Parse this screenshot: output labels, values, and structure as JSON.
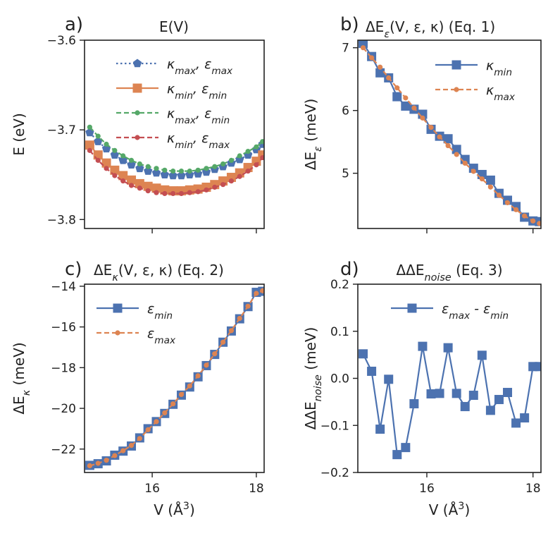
{
  "colors": {
    "blue": "#4c72b0",
    "orange": "#dd8452",
    "green": "#55a868",
    "red": "#c44e52",
    "axis": "#222222"
  },
  "panels": [
    {
      "letter": "a)",
      "title": "E(V)",
      "ylabel": "E (eV)",
      "xlabel": ""
    },
    {
      "letter": "b)",
      "title": "ΔE_ε(V, ε, κ)  (Eq. 1)",
      "ylabel": "ΔE_ε (meV)",
      "xlabel": ""
    },
    {
      "letter": "c)",
      "title": "ΔE_κ(V, ε, κ) (Eq. 2)",
      "ylabel": "ΔE_κ (meV)",
      "xlabel": "V (Å³)"
    },
    {
      "letter": "d)",
      "title": "ΔΔE_noise (Eq. 3)",
      "ylabel": "ΔΔE_noise (meV)",
      "xlabel": "V (Å³)"
    }
  ],
  "chart_data": [
    {
      "type": "line",
      "title": "E(V)",
      "xlabel": "",
      "ylabel": "E (eV)",
      "xlim": [
        14.7,
        18.15
      ],
      "ylim": [
        -3.81,
        -3.6
      ],
      "yticks": [
        -3.6,
        -3.7,
        -3.8
      ],
      "ytick_labels": [
        "−3.6",
        "−3.7",
        "−3.8"
      ],
      "xticks": [
        16,
        18
      ],
      "xtick_labels": [
        "",
        ""
      ],
      "legend_position": "top-right",
      "x": [
        14.8,
        14.96,
        15.12,
        15.28,
        15.44,
        15.6,
        15.76,
        15.92,
        16.08,
        16.24,
        16.4,
        16.56,
        16.72,
        16.88,
        17.04,
        17.2,
        17.36,
        17.52,
        17.68,
        17.84,
        18.0,
        18.12
      ],
      "series": [
        {
          "name": "κ_max, ε_max",
          "color": "#4c72b0",
          "marker": "pentagon",
          "linestyle": "dotted",
          "values": [
            -3.703,
            -3.713,
            -3.721,
            -3.728,
            -3.734,
            -3.739,
            -3.743,
            -3.746,
            -3.748,
            -3.75,
            -3.751,
            -3.751,
            -3.75,
            -3.749,
            -3.747,
            -3.744,
            -3.741,
            -3.737,
            -3.733,
            -3.728,
            -3.722,
            -3.716
          ]
        },
        {
          "name": "κ_min, ε_min",
          "color": "#dd8452",
          "marker": "square",
          "linestyle": "solid",
          "values": [
            -3.717,
            -3.728,
            -3.737,
            -3.745,
            -3.751,
            -3.756,
            -3.76,
            -3.763,
            -3.765,
            -3.767,
            -3.768,
            -3.768,
            -3.767,
            -3.766,
            -3.764,
            -3.761,
            -3.757,
            -3.753,
            -3.748,
            -3.742,
            -3.735,
            -3.728
          ]
        },
        {
          "name": "κ_max, ε_min",
          "color": "#55a868",
          "marker": "dot",
          "linestyle": "dashed",
          "values": [
            -3.697,
            -3.707,
            -3.716,
            -3.723,
            -3.729,
            -3.734,
            -3.738,
            -3.741,
            -3.743,
            -3.745,
            -3.746,
            -3.746,
            -3.746,
            -3.745,
            -3.743,
            -3.741,
            -3.738,
            -3.734,
            -3.729,
            -3.724,
            -3.719,
            -3.713
          ]
        },
        {
          "name": "κ_min, ε_max",
          "color": "#c44e52",
          "marker": "dot",
          "linestyle": "dashed",
          "values": [
            -3.723,
            -3.734,
            -3.743,
            -3.751,
            -3.757,
            -3.762,
            -3.765,
            -3.768,
            -3.77,
            -3.771,
            -3.771,
            -3.771,
            -3.77,
            -3.769,
            -3.767,
            -3.764,
            -3.761,
            -3.757,
            -3.752,
            -3.746,
            -3.739,
            -3.731
          ]
        }
      ]
    },
    {
      "type": "line",
      "title": "ΔE_ε(V, ε, κ)  (Eq. 1)",
      "xlabel": "",
      "ylabel": "ΔE_ε (meV)",
      "xlim": [
        14.7,
        18.15
      ],
      "ylim": [
        4.12,
        7.12
      ],
      "yticks": [
        5,
        6,
        7
      ],
      "ytick_labels": [
        "5",
        "6",
        "7"
      ],
      "xticks": [
        16,
        18
      ],
      "xtick_labels": [
        "",
        ""
      ],
      "legend_position": "top-right",
      "x": [
        14.8,
        14.96,
        15.12,
        15.28,
        15.44,
        15.6,
        15.76,
        15.92,
        16.08,
        16.24,
        16.4,
        16.56,
        16.72,
        16.88,
        17.04,
        17.2,
        17.36,
        17.52,
        17.68,
        17.84,
        18.0,
        18.12
      ],
      "series": [
        {
          "name": "κ_min",
          "color": "#4c72b0",
          "marker": "square",
          "linestyle": "solid",
          "values": [
            7.07,
            6.86,
            6.6,
            6.52,
            6.22,
            6.07,
            6.02,
            5.94,
            5.7,
            5.59,
            5.55,
            5.38,
            5.22,
            5.08,
            4.98,
            4.89,
            4.68,
            4.57,
            4.47,
            4.3,
            4.24,
            4.23
          ]
        },
        {
          "name": "κ_max",
          "color": "#dd8452",
          "marker": "dot",
          "linestyle": "dashed",
          "values": [
            7.0,
            6.84,
            6.69,
            6.52,
            6.36,
            6.2,
            6.04,
            5.88,
            5.73,
            5.58,
            5.44,
            5.3,
            5.16,
            5.03,
            4.91,
            4.78,
            4.65,
            4.53,
            4.42,
            4.32,
            4.24,
            4.2
          ]
        }
      ]
    },
    {
      "type": "line",
      "title": "ΔE_κ(V, ε, κ) (Eq. 2)",
      "xlabel": "V (Å³)",
      "ylabel": "ΔE_κ (meV)",
      "xlim": [
        14.7,
        18.15
      ],
      "ylim": [
        -23.15,
        -13.9
      ],
      "yticks": [
        -14,
        -16,
        -18,
        -20,
        -22
      ],
      "ytick_labels": [
        "−14",
        "−16",
        "−18",
        "−20",
        "−22"
      ],
      "xticks": [
        16,
        18
      ],
      "xtick_labels": [
        "16",
        "18"
      ],
      "legend_position": "top-left",
      "x": [
        14.8,
        14.96,
        15.12,
        15.28,
        15.44,
        15.6,
        15.76,
        15.92,
        16.08,
        16.24,
        16.4,
        16.56,
        16.72,
        16.88,
        17.04,
        17.2,
        17.36,
        17.52,
        17.68,
        17.84,
        18.0,
        18.12
      ],
      "series": [
        {
          "name": "ε_min",
          "color": "#4c72b0",
          "marker": "square",
          "linestyle": "solid",
          "values": [
            -22.8,
            -22.72,
            -22.58,
            -22.3,
            -22.1,
            -21.85,
            -21.45,
            -21.0,
            -20.65,
            -20.25,
            -19.8,
            -19.35,
            -18.95,
            -18.45,
            -17.9,
            -17.35,
            -16.75,
            -16.2,
            -15.6,
            -15.0,
            -14.3,
            -14.25
          ]
        },
        {
          "name": "ε_max",
          "color": "#dd8452",
          "marker": "dot",
          "linestyle": "dashed",
          "values": [
            -22.82,
            -22.7,
            -22.55,
            -22.32,
            -22.08,
            -21.82,
            -21.48,
            -21.05,
            -20.65,
            -20.22,
            -19.78,
            -19.32,
            -18.9,
            -18.4,
            -17.88,
            -17.32,
            -16.75,
            -16.18,
            -15.58,
            -14.98,
            -14.35,
            -14.22
          ]
        }
      ]
    },
    {
      "type": "line",
      "title": "ΔΔE_noise (Eq. 3)",
      "xlabel": "V (Å³)",
      "ylabel": "ΔΔE_noise (meV)",
      "xlim": [
        14.7,
        18.15
      ],
      "ylim": [
        -0.2,
        0.2
      ],
      "yticks": [
        0.2,
        0.1,
        0.0,
        -0.1,
        -0.2
      ],
      "ytick_labels": [
        "0.2",
        "0.1",
        "0.0",
        "−0.1",
        "−0.2"
      ],
      "xticks": [
        16,
        18
      ],
      "xtick_labels": [
        "16",
        "18"
      ],
      "legend_position": "top-right",
      "x": [
        14.8,
        14.96,
        15.12,
        15.28,
        15.44,
        15.6,
        15.76,
        15.92,
        16.08,
        16.24,
        16.4,
        16.56,
        16.72,
        16.88,
        17.04,
        17.2,
        17.36,
        17.52,
        17.68,
        17.84,
        18.0,
        18.12
      ],
      "series": [
        {
          "name": "ε_max - ε_min",
          "color": "#4c72b0",
          "marker": "square",
          "linestyle": "solid",
          "values": [
            0.052,
            0.015,
            -0.108,
            -0.002,
            -0.162,
            -0.147,
            -0.054,
            0.068,
            -0.033,
            -0.032,
            0.065,
            -0.032,
            -0.06,
            -0.036,
            0.049,
            -0.068,
            -0.045,
            -0.03,
            -0.095,
            -0.084,
            0.025,
            0.025
          ]
        }
      ]
    }
  ]
}
